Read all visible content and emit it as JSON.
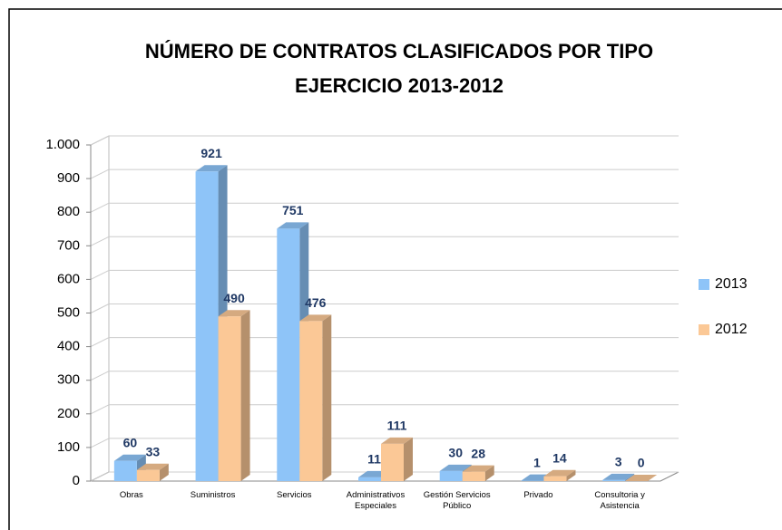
{
  "chart_data": {
    "type": "bar3d",
    "title": "NÚMERO DE CONTRATOS CLASIFICADOS POR TIPO",
    "subtitle": "EJERCICIO 2013-2012",
    "categories": [
      "Obras",
      "Suministros",
      "Servicios",
      "Administrativos Especiales",
      "Gestión Servicios Público",
      "Privado",
      "Consultoria y Asistencia"
    ],
    "series": [
      {
        "name": "2013",
        "color": "#8ec4f8",
        "values": [
          60,
          921,
          751,
          11,
          30,
          1,
          3
        ]
      },
      {
        "name": "2012",
        "color": "#fbc896",
        "values": [
          33,
          490,
          476,
          111,
          28,
          14,
          0
        ]
      }
    ],
    "ylim": [
      0,
      1000
    ],
    "yticks": [
      0,
      100,
      200,
      300,
      400,
      500,
      600,
      700,
      800,
      900,
      {
        "value": 1000,
        "label": "1.000"
      }
    ],
    "grid": true,
    "legend": "right"
  }
}
